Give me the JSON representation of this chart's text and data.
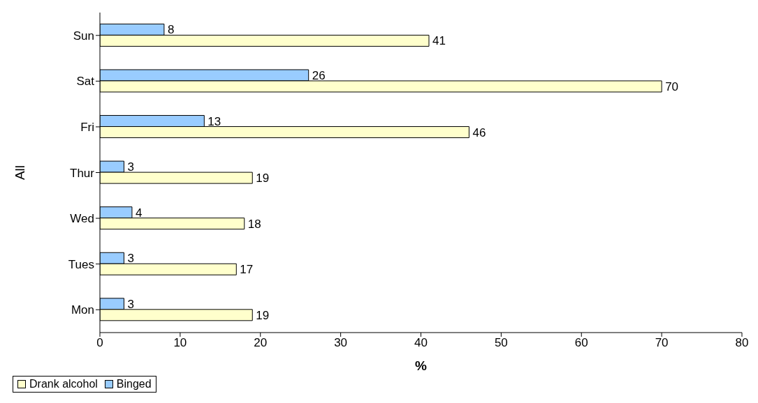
{
  "chart_data": {
    "type": "bar",
    "orientation": "horizontal",
    "xlabel": "%",
    "ylabel": "All",
    "categories": [
      "Sun",
      "Sat",
      "Fri",
      "Thur",
      "Wed",
      "Tues",
      "Mon"
    ],
    "series": [
      {
        "name": "Drank alcohol",
        "color": "#ffffcc",
        "values": [
          41,
          70,
          46,
          19,
          18,
          17,
          19
        ]
      },
      {
        "name": "Binged",
        "color": "#99ccff",
        "values": [
          8,
          26,
          13,
          3,
          4,
          3,
          3
        ]
      }
    ],
    "xlim": [
      0,
      80
    ],
    "xticks": [
      0,
      10,
      20,
      30,
      40,
      50,
      60,
      70,
      80
    ],
    "data_labels": true,
    "legend": "bottom",
    "grid": false
  }
}
